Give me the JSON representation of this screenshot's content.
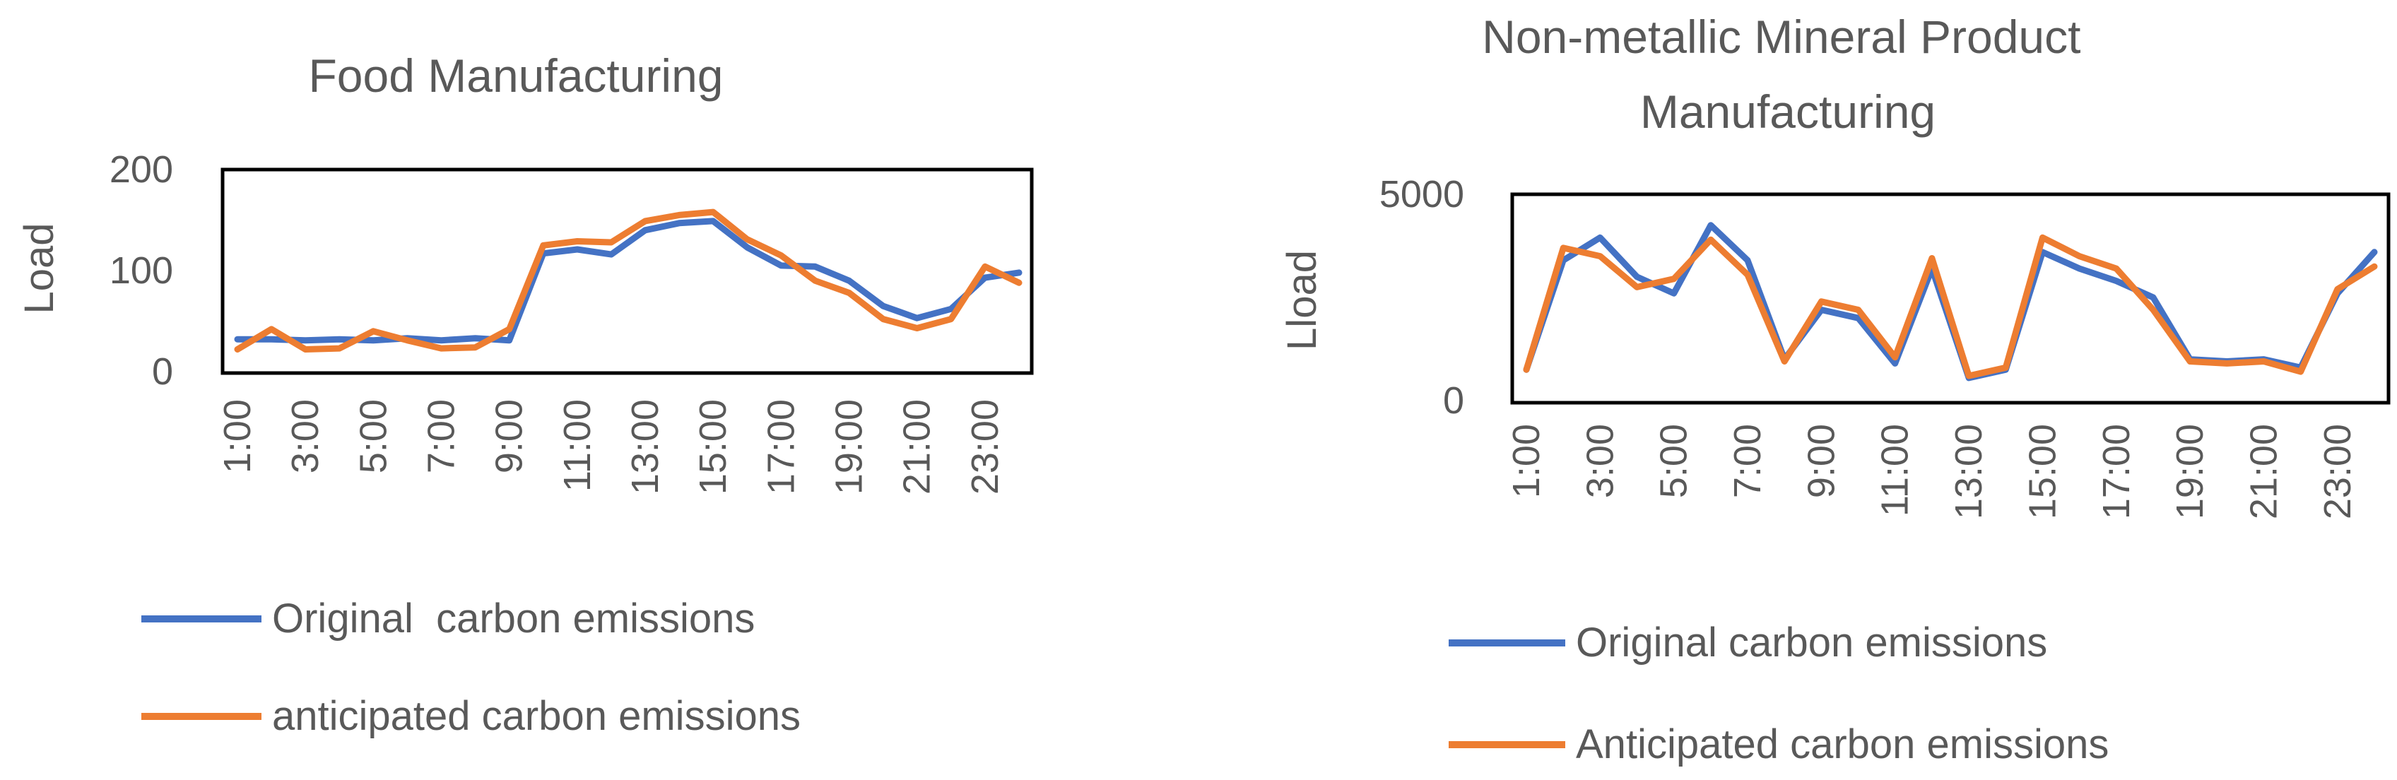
{
  "colors": {
    "original": "#4472C4",
    "anticipated": "#ED7D31",
    "text": "#595959",
    "frame": "#000000"
  },
  "chart_data": [
    {
      "type": "line",
      "title": "Food Manufacturing",
      "ylabel": "Load",
      "xlabel": "",
      "ylim": [
        0,
        200
      ],
      "yticks": [
        0,
        100,
        200
      ],
      "grid": false,
      "legend": "bottom",
      "x": [
        "1:00",
        "2:00",
        "3:00",
        "4:00",
        "5:00",
        "6:00",
        "7:00",
        "8:00",
        "9:00",
        "10:00",
        "11:00",
        "12:00",
        "13:00",
        "14:00",
        "15:00",
        "16:00",
        "17:00",
        "18:00",
        "19:00",
        "20:00",
        "21:00",
        "22:00",
        "23:00",
        "24:00"
      ],
      "xtick_labels": [
        "1:00",
        "3:00",
        "5:00",
        "7:00",
        "9:00",
        "11:00",
        "13:00",
        "15:00",
        "17:00",
        "19:00",
        "21:00",
        "23:00"
      ],
      "series": [
        {
          "name": "Original  carbon emissions",
          "color": "#4472C4",
          "values": [
            32,
            32,
            31,
            32,
            31,
            33,
            31,
            33,
            31,
            117,
            121,
            116,
            140,
            147,
            149,
            123,
            105,
            104,
            90,
            65,
            53,
            62,
            93,
            98
          ]
        },
        {
          "name": "anticipated carbon emissions",
          "color": "#ED7D31",
          "values": [
            22,
            42,
            22,
            23,
            40,
            31,
            23,
            24,
            42,
            125,
            129,
            128,
            149,
            155,
            158,
            131,
            115,
            90,
            78,
            52,
            43,
            52,
            104,
            88
          ]
        }
      ]
    },
    {
      "type": "line",
      "title": "Non-metallic Mineral Product Manufacturing",
      "ylabel": "Lload",
      "xlabel": "",
      "ylim": [
        0,
        5000
      ],
      "yticks": [
        0,
        5000
      ],
      "grid": false,
      "legend": "bottom",
      "x": [
        "1:00",
        "2:00",
        "3:00",
        "4:00",
        "5:00",
        "6:00",
        "7:00",
        "8:00",
        "9:00",
        "10:00",
        "11:00",
        "12:00",
        "13:00",
        "14:00",
        "15:00",
        "16:00",
        "17:00",
        "18:00",
        "19:00",
        "20:00",
        "21:00",
        "22:00",
        "23:00",
        "24:00"
      ],
      "xtick_labels": [
        "1:00",
        "3:00",
        "5:00",
        "7:00",
        "9:00",
        "11:00",
        "13:00",
        "15:00",
        "17:00",
        "19:00",
        "21:00",
        "23:00"
      ],
      "series": [
        {
          "name": "Original carbon emissions",
          "color": "#4472C4",
          "values": [
            750,
            3400,
            3950,
            3000,
            2600,
            4250,
            3400,
            1000,
            2200,
            2000,
            900,
            3200,
            550,
            750,
            3600,
            3200,
            2900,
            2500,
            1000,
            950,
            1000,
            800,
            2600,
            3600
          ]
        },
        {
          "name": "Anticipated carbon emissions",
          "color": "#ED7D31",
          "values": [
            750,
            3700,
            3500,
            2750,
            2950,
            3900,
            3050,
            950,
            2400,
            2200,
            1050,
            3450,
            600,
            800,
            3950,
            3500,
            3200,
            2200,
            950,
            900,
            950,
            700,
            2700,
            3250
          ]
        }
      ]
    }
  ]
}
